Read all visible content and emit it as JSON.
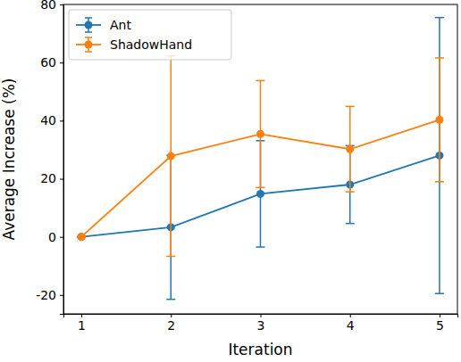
{
  "chart_data": {
    "type": "line",
    "x_label": "Iteration",
    "y_label": "Average Increase (%)",
    "x": [
      1,
      2,
      3,
      4,
      5
    ],
    "xlim": [
      0.8,
      5.2
    ],
    "xticks": [
      1,
      2,
      3,
      4,
      5
    ],
    "ylim": [
      -26.5,
      80
    ],
    "yticks": [
      -20,
      0,
      20,
      40,
      60,
      80
    ],
    "legend": "upper left",
    "grid": false,
    "series": [
      {
        "name": "Ant",
        "color": "#1f77b4",
        "marker": "o",
        "line_style": "solid",
        "values": [
          0,
          3.3,
          14.8,
          18.0,
          28.0
        ],
        "errors": [
          0,
          24.8,
          18.3,
          13.4,
          47.5
        ]
      },
      {
        "name": "ShadowHand",
        "color": "#ff7f0e",
        "marker": "o",
        "line_style": "solid",
        "values": [
          0,
          27.8,
          35.4,
          30.2,
          40.3
        ],
        "errors": [
          0,
          34.5,
          18.4,
          14.7,
          21.3
        ]
      }
    ]
  }
}
